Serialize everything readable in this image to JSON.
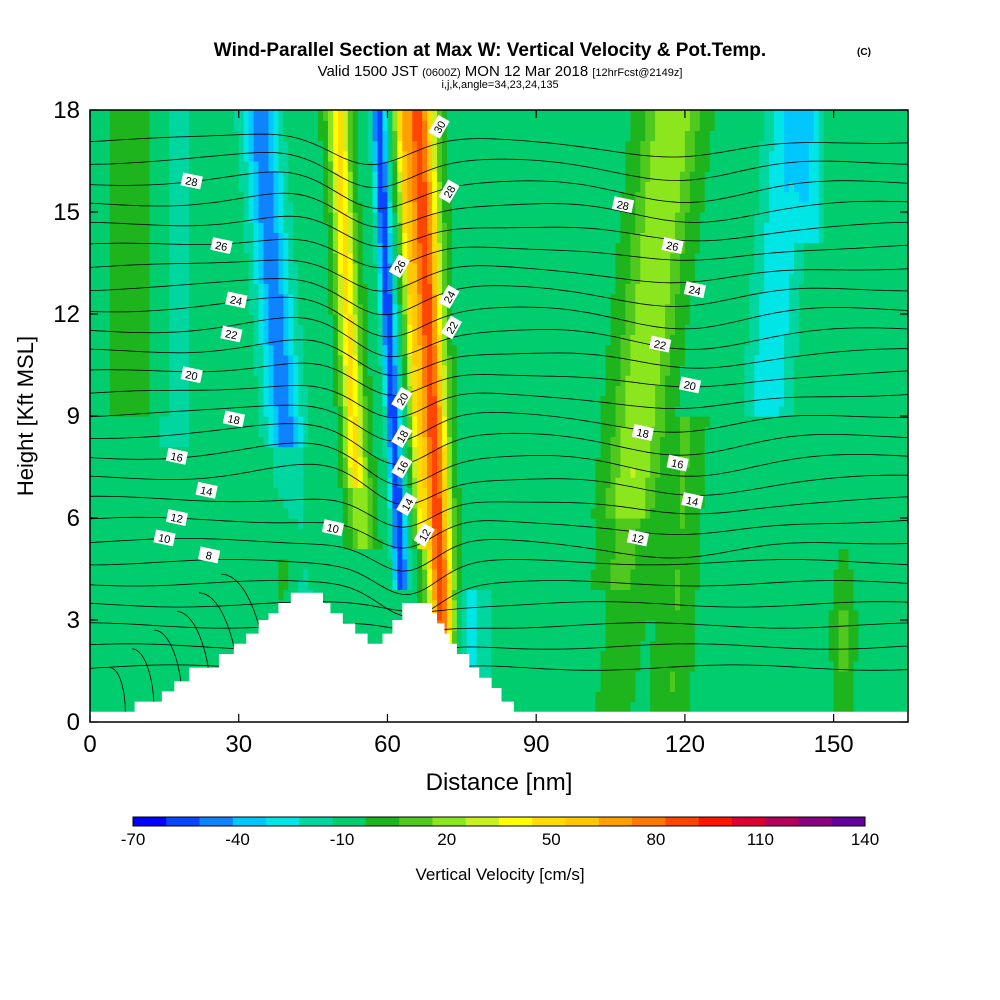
{
  "chart_data": {
    "type": "heatmap",
    "title": "Wind-Parallel Section at Max W: Vertical Velocity & Pot.Temp.",
    "title_mark": "(C)",
    "subtitle_parts": [
      "Valid 1500 JST",
      "(0600Z)",
      "MON 12 Mar 2018",
      "[12hrFcst@2149z]"
    ],
    "subtitle2": "i,j,k,angle=34,23,24,135",
    "xlabel": "Distance [nm]",
    "ylabel": "Height [Kft MSL]",
    "xlim": [
      0,
      165
    ],
    "ylim": [
      0,
      18
    ],
    "xticks": [
      0,
      30,
      60,
      90,
      120,
      150
    ],
    "yticks": [
      0,
      3,
      6,
      9,
      12,
      15,
      18
    ],
    "grid": false,
    "colorbar": {
      "label": "Vertical Velocity [cm/s]",
      "tick_labels": [
        "-70",
        "-40",
        "-10",
        "20",
        "50",
        "80",
        "110",
        "140"
      ],
      "levels": [
        -70,
        -60,
        -50,
        -40,
        -30,
        -20,
        -10,
        0,
        10,
        20,
        30,
        40,
        50,
        60,
        70,
        80,
        90,
        100,
        110,
        120,
        130,
        140
      ],
      "colors": [
        "#0000ff",
        "#0a46ff",
        "#0f82ff",
        "#00c8ff",
        "#00e6e6",
        "#00d7a0",
        "#00cd6e",
        "#1eb41e",
        "#50c81e",
        "#8ce61e",
        "#c8f01e",
        "#ffff00",
        "#ffdc00",
        "#ffc800",
        "#ffa000",
        "#ff7800",
        "#ff4600",
        "#ff1400",
        "#dc0032",
        "#b4005a",
        "#8c0082",
        "#64009b"
      ]
    },
    "contour_labels": [
      {
        "text": "30",
        "x": 70.5,
        "y": 17.5
      },
      {
        "text": "28",
        "x": 20.5,
        "y": 15.9
      },
      {
        "text": "28",
        "x": 72.5,
        "y": 15.6
      },
      {
        "text": "28",
        "x": 107.5,
        "y": 15.2
      },
      {
        "text": "26",
        "x": 26.5,
        "y": 14.0
      },
      {
        "text": "26",
        "x": 62.5,
        "y": 13.4
      },
      {
        "text": "26",
        "x": 117.5,
        "y": 14.0
      },
      {
        "text": "24",
        "x": 29.5,
        "y": 12.4
      },
      {
        "text": "24",
        "x": 72.5,
        "y": 12.5
      },
      {
        "text": "24",
        "x": 122.0,
        "y": 12.7
      },
      {
        "text": "22",
        "x": 28.5,
        "y": 11.4
      },
      {
        "text": "22",
        "x": 73.0,
        "y": 11.6
      },
      {
        "text": "22",
        "x": 115.0,
        "y": 11.1
      },
      {
        "text": "20",
        "x": 20.5,
        "y": 10.2
      },
      {
        "text": "20",
        "x": 63.0,
        "y": 9.5
      },
      {
        "text": "20",
        "x": 121.0,
        "y": 9.9
      },
      {
        "text": "18",
        "x": 29.0,
        "y": 8.9
      },
      {
        "text": "18",
        "x": 63.0,
        "y": 8.4
      },
      {
        "text": "18",
        "x": 111.5,
        "y": 8.5
      },
      {
        "text": "16",
        "x": 17.5,
        "y": 7.8
      },
      {
        "text": "16",
        "x": 63.0,
        "y": 7.5
      },
      {
        "text": "16",
        "x": 118.5,
        "y": 7.6
      },
      {
        "text": "14",
        "x": 23.5,
        "y": 6.8
      },
      {
        "text": "14",
        "x": 64.0,
        "y": 6.4
      },
      {
        "text": "14",
        "x": 121.5,
        "y": 6.5
      },
      {
        "text": "12",
        "x": 17.5,
        "y": 6.0
      },
      {
        "text": "12",
        "x": 67.5,
        "y": 5.5
      },
      {
        "text": "12",
        "x": 110.5,
        "y": 5.4
      },
      {
        "text": "10",
        "x": 15.0,
        "y": 5.4
      },
      {
        "text": "10",
        "x": 49.0,
        "y": 5.7
      },
      {
        "text": "8",
        "x": 24.0,
        "y": 4.9
      }
    ],
    "terrain": [
      [
        0,
        0.3
      ],
      [
        9,
        0.3
      ],
      [
        9,
        0.6
      ],
      [
        14.5,
        0.6
      ],
      [
        14.5,
        0.9
      ],
      [
        17,
        0.9
      ],
      [
        17,
        1.2
      ],
      [
        20,
        1.2
      ],
      [
        20,
        1.6
      ],
      [
        26,
        1.6
      ],
      [
        26,
        2.0
      ],
      [
        29,
        2.0
      ],
      [
        29,
        2.3
      ],
      [
        31.5,
        2.3
      ],
      [
        31.5,
        2.6
      ],
      [
        34,
        2.6
      ],
      [
        34,
        3.0
      ],
      [
        36,
        3.0
      ],
      [
        36,
        3.2
      ],
      [
        38,
        3.2
      ],
      [
        38,
        3.5
      ],
      [
        40.5,
        3.5
      ],
      [
        40.5,
        3.8
      ],
      [
        44,
        3.8
      ],
      [
        47,
        3.8
      ],
      [
        47,
        3.5
      ],
      [
        48.5,
        3.5
      ],
      [
        48.5,
        3.2
      ],
      [
        51,
        3.2
      ],
      [
        51,
        2.9
      ],
      [
        53.5,
        2.9
      ],
      [
        53.5,
        2.6
      ],
      [
        56,
        2.6
      ],
      [
        56,
        2.3
      ],
      [
        59,
        2.3
      ],
      [
        59,
        2.6
      ],
      [
        61,
        2.6
      ],
      [
        61,
        3.0
      ],
      [
        63,
        3.0
      ],
      [
        63,
        3.5
      ],
      [
        69,
        3.5
      ],
      [
        69,
        3.2
      ],
      [
        70,
        3.2
      ],
      [
        70,
        2.9
      ],
      [
        71.5,
        2.9
      ],
      [
        71.5,
        2.6
      ],
      [
        72.5,
        2.6
      ],
      [
        72.5,
        2.3
      ],
      [
        74,
        2.3
      ],
      [
        74,
        2.0
      ],
      [
        76.5,
        2.0
      ],
      [
        76.5,
        1.6
      ],
      [
        78.5,
        1.6
      ],
      [
        78.5,
        1.3
      ],
      [
        81,
        1.3
      ],
      [
        81,
        1.0
      ],
      [
        83,
        1.0
      ],
      [
        83,
        0.6
      ],
      [
        85.5,
        0.6
      ],
      [
        85.5,
        0.3
      ],
      [
        165,
        0.3
      ]
    ]
  }
}
